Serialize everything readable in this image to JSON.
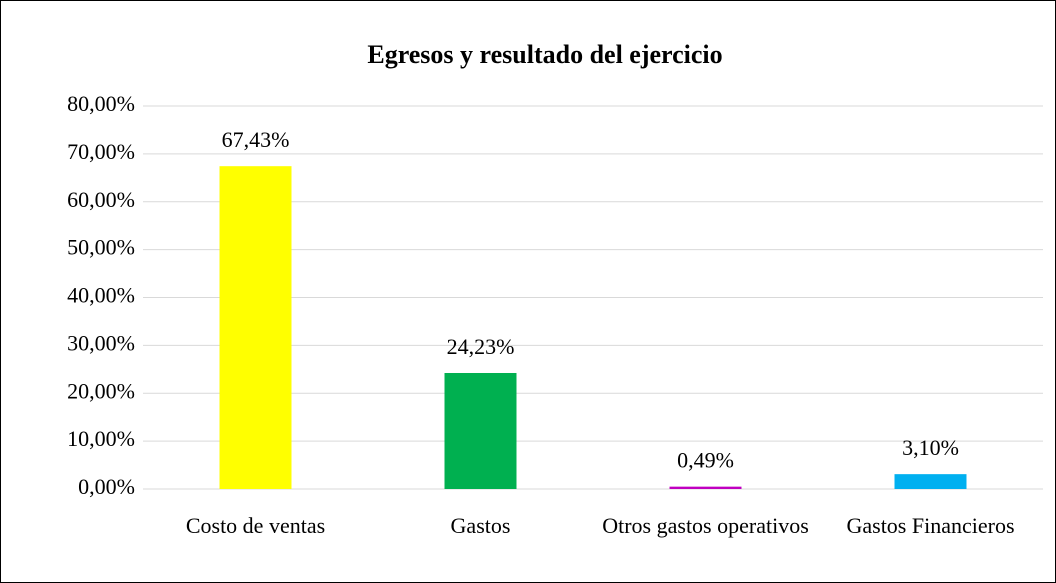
{
  "chart_data": {
    "type": "bar",
    "title": "Egresos y resultado del ejercicio",
    "categories": [
      "Costo de ventas",
      "Gastos",
      "Otros gastos operativos",
      "Gastos Financieros"
    ],
    "values": [
      67.43,
      24.23,
      0.49,
      3.1
    ],
    "value_labels": [
      "67,43%",
      "24,23%",
      "0,49%",
      "3,10%"
    ],
    "colors": [
      "#ffff00",
      "#00b050",
      "#c000c0",
      "#00b0f0"
    ],
    "ylim": [
      0,
      80
    ],
    "yticks": [
      {
        "value": 0,
        "label": "0,00%"
      },
      {
        "value": 10,
        "label": "10,00%"
      },
      {
        "value": 20,
        "label": "20,00%"
      },
      {
        "value": 30,
        "label": "30,00%"
      },
      {
        "value": 40,
        "label": "40,00%"
      },
      {
        "value": 50,
        "label": "50,00%"
      },
      {
        "value": 60,
        "label": "60,00%"
      },
      {
        "value": 70,
        "label": "70,00%"
      },
      {
        "value": 80,
        "label": "80,00%"
      }
    ],
    "grid": true
  }
}
